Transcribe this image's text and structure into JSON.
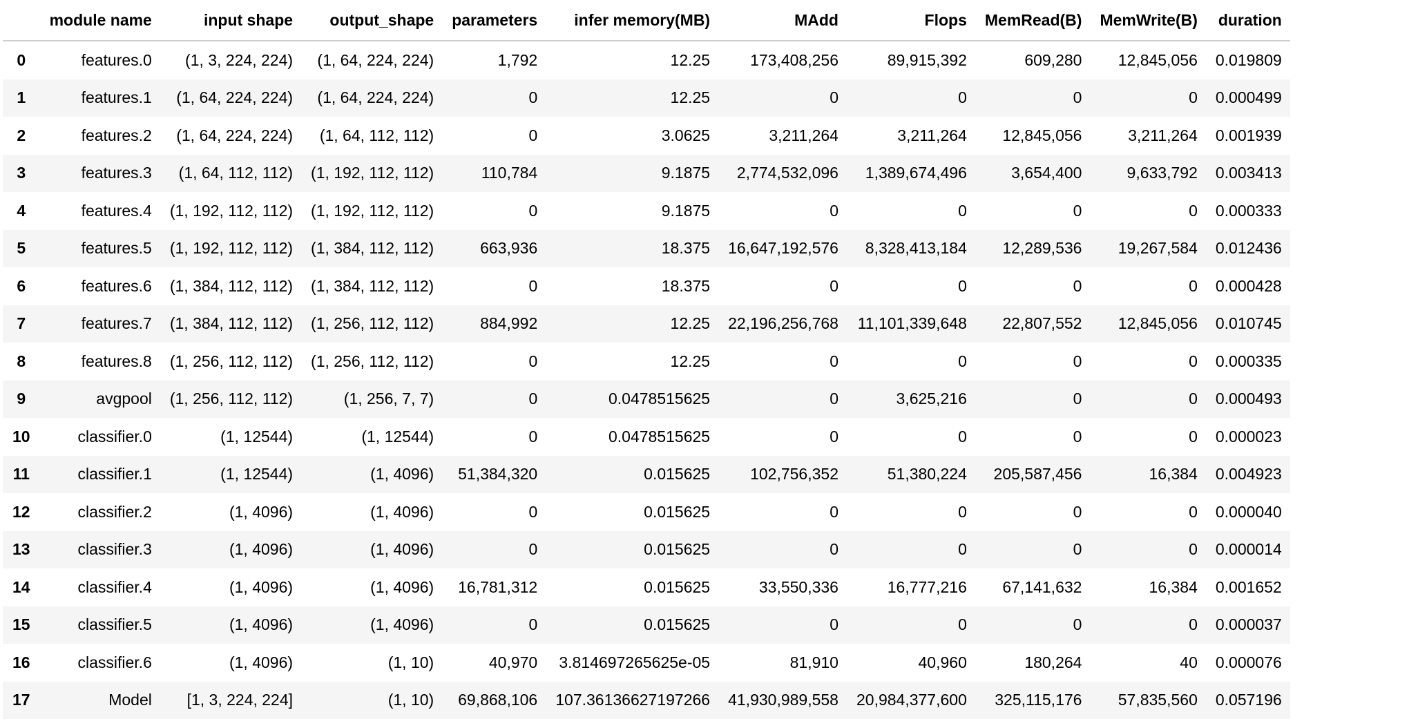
{
  "table": {
    "columns": [
      "",
      "module name",
      "input shape",
      "output_shape",
      "parameters",
      "infer memory(MB)",
      "MAdd",
      "Flops",
      "MemRead(B)",
      "MemWrite(B)",
      "duration"
    ],
    "rows": [
      [
        "0",
        "features.0",
        "(1, 3, 224, 224)",
        "(1, 64, 224, 224)",
        "1,792",
        "12.25",
        "173,408,256",
        "89,915,392",
        "609,280",
        "12,845,056",
        "0.019809"
      ],
      [
        "1",
        "features.1",
        "(1, 64, 224, 224)",
        "(1, 64, 224, 224)",
        "0",
        "12.25",
        "0",
        "0",
        "0",
        "0",
        "0.000499"
      ],
      [
        "2",
        "features.2",
        "(1, 64, 224, 224)",
        "(1, 64, 112, 112)",
        "0",
        "3.0625",
        "3,211,264",
        "3,211,264",
        "12,845,056",
        "3,211,264",
        "0.001939"
      ],
      [
        "3",
        "features.3",
        "(1, 64, 112, 112)",
        "(1, 192, 112, 112)",
        "110,784",
        "9.1875",
        "2,774,532,096",
        "1,389,674,496",
        "3,654,400",
        "9,633,792",
        "0.003413"
      ],
      [
        "4",
        "features.4",
        "(1, 192, 112, 112)",
        "(1, 192, 112, 112)",
        "0",
        "9.1875",
        "0",
        "0",
        "0",
        "0",
        "0.000333"
      ],
      [
        "5",
        "features.5",
        "(1, 192, 112, 112)",
        "(1, 384, 112, 112)",
        "663,936",
        "18.375",
        "16,647,192,576",
        "8,328,413,184",
        "12,289,536",
        "19,267,584",
        "0.012436"
      ],
      [
        "6",
        "features.6",
        "(1, 384, 112, 112)",
        "(1, 384, 112, 112)",
        "0",
        "18.375",
        "0",
        "0",
        "0",
        "0",
        "0.000428"
      ],
      [
        "7",
        "features.7",
        "(1, 384, 112, 112)",
        "(1, 256, 112, 112)",
        "884,992",
        "12.25",
        "22,196,256,768",
        "11,101,339,648",
        "22,807,552",
        "12,845,056",
        "0.010745"
      ],
      [
        "8",
        "features.8",
        "(1, 256, 112, 112)",
        "(1, 256, 112, 112)",
        "0",
        "12.25",
        "0",
        "0",
        "0",
        "0",
        "0.000335"
      ],
      [
        "9",
        "avgpool",
        "(1, 256, 112, 112)",
        "(1, 256, 7, 7)",
        "0",
        "0.0478515625",
        "0",
        "3,625,216",
        "0",
        "0",
        "0.000493"
      ],
      [
        "10",
        "classifier.0",
        "(1, 12544)",
        "(1, 12544)",
        "0",
        "0.0478515625",
        "0",
        "0",
        "0",
        "0",
        "0.000023"
      ],
      [
        "11",
        "classifier.1",
        "(1, 12544)",
        "(1, 4096)",
        "51,384,320",
        "0.015625",
        "102,756,352",
        "51,380,224",
        "205,587,456",
        "16,384",
        "0.004923"
      ],
      [
        "12",
        "classifier.2",
        "(1, 4096)",
        "(1, 4096)",
        "0",
        "0.015625",
        "0",
        "0",
        "0",
        "0",
        "0.000040"
      ],
      [
        "13",
        "classifier.3",
        "(1, 4096)",
        "(1, 4096)",
        "0",
        "0.015625",
        "0",
        "0",
        "0",
        "0",
        "0.000014"
      ],
      [
        "14",
        "classifier.4",
        "(1, 4096)",
        "(1, 4096)",
        "16,781,312",
        "0.015625",
        "33,550,336",
        "16,777,216",
        "67,141,632",
        "16,384",
        "0.001652"
      ],
      [
        "15",
        "classifier.5",
        "(1, 4096)",
        "(1, 4096)",
        "0",
        "0.015625",
        "0",
        "0",
        "0",
        "0",
        "0.000037"
      ],
      [
        "16",
        "classifier.6",
        "(1, 4096)",
        "(1, 10)",
        "40,970",
        "3.814697265625e-05",
        "81,910",
        "40,960",
        "180,264",
        "40",
        "0.000076"
      ],
      [
        "17",
        "Model",
        "[1, 3, 224, 224]",
        "(1, 10)",
        "69,868,106",
        "107.36136627197266",
        "41,930,989,558",
        "20,984,377,600",
        "325,115,176",
        "57,835,560",
        "0.057196"
      ]
    ]
  }
}
